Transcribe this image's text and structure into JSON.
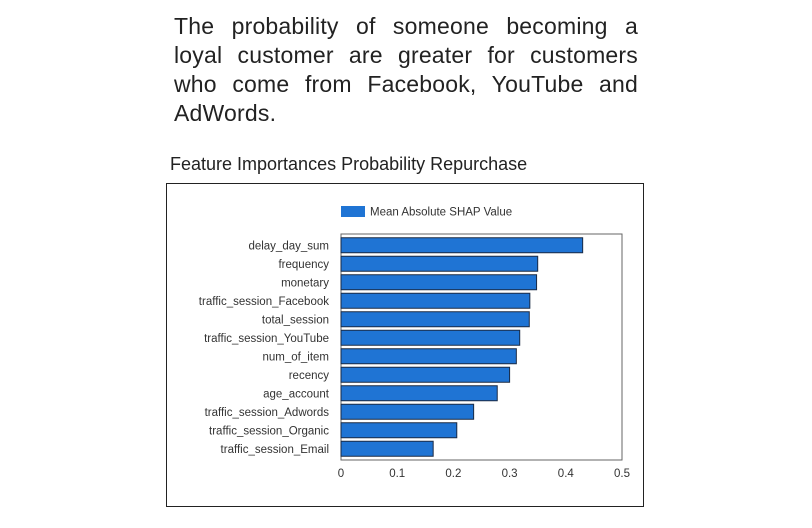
{
  "description": "The probability of someone becoming a loyal customer are greater for customers who come from Facebook, YouTube and AdWords.",
  "chart_data": {
    "type": "bar",
    "orientation": "horizontal",
    "title": "Feature Importances Probability Repurchase",
    "categories": [
      "delay_day_sum",
      "frequency",
      "monetary",
      "traffic_session_Facebook",
      "total_session",
      "traffic_session_YouTube",
      "num_of_item",
      "recency",
      "age_account",
      "traffic_session_Adwords",
      "traffic_session_Organic",
      "traffic_session_Email"
    ],
    "series": [
      {
        "name": "Mean Absolute SHAP Value",
        "values": [
          0.43,
          0.35,
          0.348,
          0.336,
          0.335,
          0.318,
          0.312,
          0.3,
          0.278,
          0.236,
          0.206,
          0.164
        ],
        "color": "#1f74d4"
      }
    ],
    "xlim": [
      0,
      0.5
    ],
    "xticks": [
      "0",
      "0.1",
      "0.2",
      "0.3",
      "0.4",
      "0.5"
    ],
    "grid": false,
    "legend": "top"
  }
}
